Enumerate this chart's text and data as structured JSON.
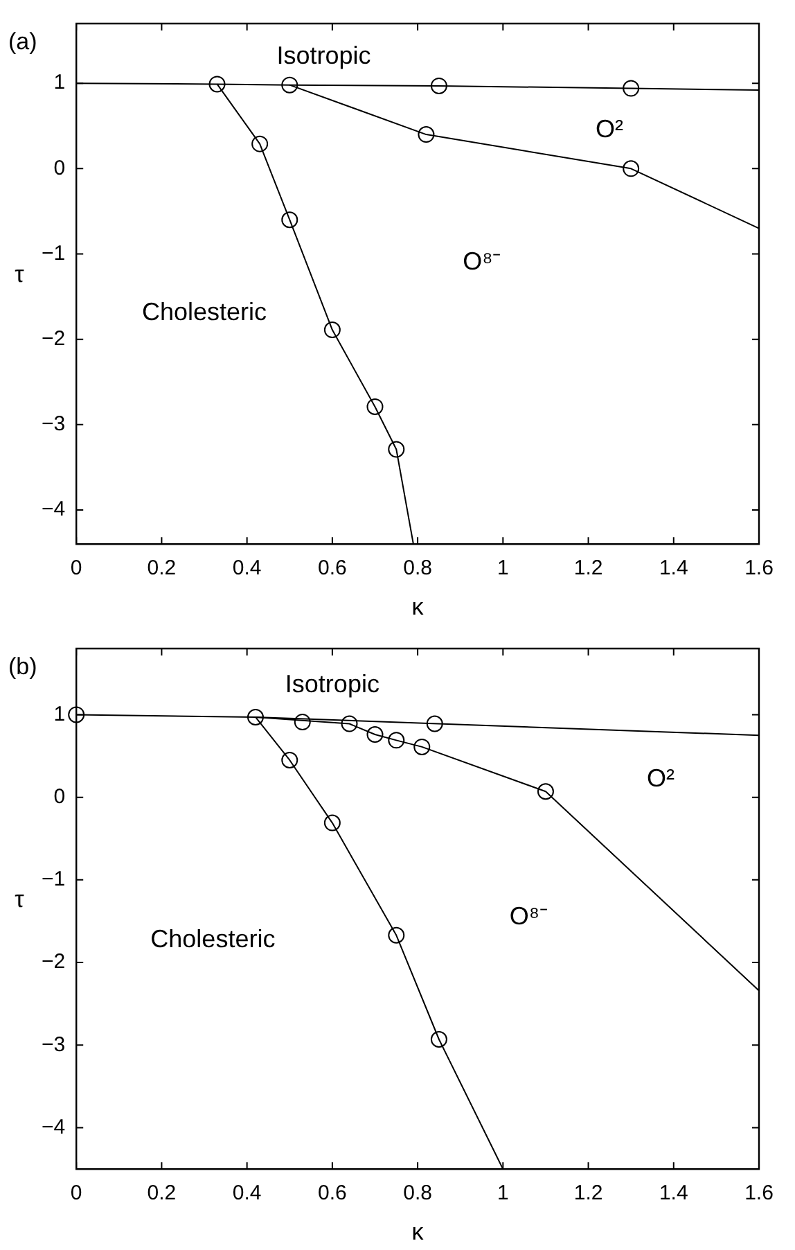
{
  "chart_data": [
    {
      "type": "line",
      "title": "(a)",
      "xlabel": "κ",
      "ylabel": "τ",
      "xlim": [
        0,
        1.6
      ],
      "ylim": [
        -4.4,
        1.7
      ],
      "xticks": [
        0,
        0.2,
        0.4,
        0.6,
        0.8,
        1,
        1.2,
        1.4,
        1.6
      ],
      "yticks": [
        -4,
        -3,
        -2,
        -1,
        0,
        1
      ],
      "grid": false,
      "legend": false,
      "line_style": "solid",
      "series": [
        {
          "type": "line",
          "color": "#000000",
          "marker": "none",
          "x": [
            0,
            0.33,
            0.5,
            0.85,
            1.3,
            1.6
          ],
          "values": [
            1,
            0.99,
            0.98,
            0.97,
            0.94,
            0.92
          ]
        },
        {
          "type": "line",
          "color": "#000000",
          "marker": "none",
          "x": [
            0.33,
            0.43,
            0.5,
            0.6,
            0.7,
            0.75,
            0.79
          ],
          "values": [
            0.99,
            0.29,
            -0.6,
            -1.89,
            -2.79,
            -3.29,
            -4.4
          ]
        },
        {
          "type": "line",
          "color": "#000000",
          "marker": "none",
          "x": [
            0.5,
            0.82,
            1.3,
            1.6
          ],
          "values": [
            0.98,
            0.4,
            0,
            -0.7
          ]
        },
        {
          "type": "scatter",
          "color": "#000000",
          "marker": "circle",
          "x": [
            0.33,
            0.5,
            0.85,
            1.3,
            0.43,
            0.5,
            0.6,
            0.7,
            0.75,
            0.82,
            1.3
          ],
          "values": [
            0.99,
            0.98,
            0.97,
            0.94,
            0.29,
            -0.6,
            -1.89,
            -2.79,
            -3.29,
            0.4,
            0
          ]
        }
      ],
      "annotations": [
        "Isotropic",
        "O²",
        "O⁸⁻",
        "Cholesteric"
      ]
    },
    {
      "type": "line",
      "title": "(b)",
      "xlabel": "κ",
      "ylabel": "τ",
      "xlim": [
        0,
        1.6
      ],
      "ylim": [
        -4.5,
        1.8
      ],
      "xticks": [
        0,
        0.2,
        0.4,
        0.6,
        0.8,
        1,
        1.2,
        1.4,
        1.6
      ],
      "yticks": [
        -4,
        -3,
        -2,
        -1,
        0,
        1
      ],
      "grid": false,
      "legend": false,
      "line_style": "solid",
      "series": [
        {
          "type": "line",
          "color": "#000000",
          "marker": "none",
          "x": [
            0,
            0.42,
            1.6
          ],
          "values": [
            1,
            0.97,
            0.75
          ]
        },
        {
          "type": "line",
          "color": "#000000",
          "marker": "none",
          "x": [
            0.42,
            0.5,
            0.6,
            0.75,
            0.85,
            1.0
          ],
          "values": [
            0.97,
            0.45,
            -0.31,
            -1.67,
            -2.93,
            -4.5
          ]
        },
        {
          "type": "line",
          "color": "#000000",
          "marker": "none",
          "x": [
            0.42,
            0.64,
            0.7,
            0.75,
            0.81,
            1.1,
            1.6
          ],
          "values": [
            0.97,
            0.89,
            0.76,
            0.69,
            0.61,
            0.07,
            -2.34
          ]
        },
        {
          "type": "scatter",
          "color": "#000000",
          "marker": "circle",
          "x": [
            0,
            0.42,
            0.53,
            0.64,
            0.84,
            0.7,
            0.75,
            0.81,
            1.1,
            0.5,
            0.6,
            0.75,
            0.85
          ],
          "values": [
            1,
            0.97,
            0.91,
            0.89,
            0.89,
            0.76,
            0.69,
            0.61,
            0.07,
            0.45,
            -0.31,
            -1.67,
            -2.93
          ]
        }
      ],
      "annotations": [
        "Isotropic",
        "O²",
        "O⁸⁻",
        "Cholesteric"
      ]
    }
  ]
}
